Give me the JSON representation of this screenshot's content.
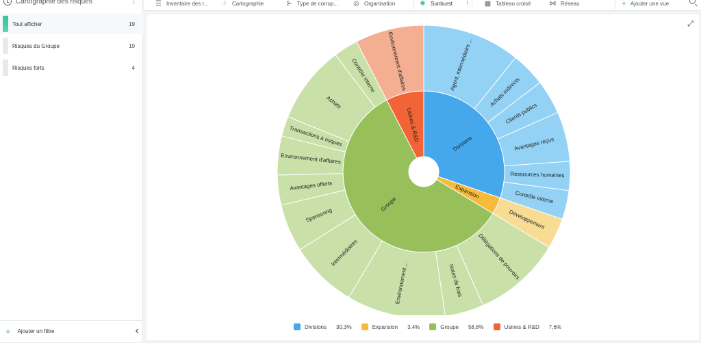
{
  "sidebar": {
    "title": "Cartographie des risques",
    "items": [
      {
        "label": "Tout afficher",
        "count": "19"
      },
      {
        "label": "Risques du Groupe",
        "count": "10"
      },
      {
        "label": "Risques forts",
        "count": "4"
      }
    ],
    "footer_label": "Ajouter un filtre"
  },
  "tabs": [
    {
      "label": "Inventaire des r...",
      "icon": "menu-icon"
    },
    {
      "label": "Cartographie",
      "icon": "scatter-icon"
    },
    {
      "label": "Type de corrup...",
      "icon": "hierarchy-icon"
    },
    {
      "label": "Organisation",
      "icon": "org-icon"
    },
    {
      "label": "Sunburst",
      "icon": "sunburst-icon",
      "active": true
    },
    {
      "label": "Tableau croisé",
      "icon": "table-icon"
    },
    {
      "label": "Réseau",
      "icon": "network-icon"
    }
  ],
  "add_view_label": "Ajouter une vue",
  "chart_data": {
    "type": "sunburst",
    "inner": [
      {
        "name": "Divisions",
        "label": "Divisions",
        "value": 30.3,
        "color": "#45a8ec",
        "light": "#93d1f5"
      },
      {
        "name": "Expansion",
        "label": "Expansion",
        "value": 3.4,
        "color": "#f6bb3a",
        "light": "#f8dc93"
      },
      {
        "name": "Groupe",
        "label": "Groupe",
        "value": 58.8,
        "color": "#97c05a",
        "light": "#c9e0a9"
      },
      {
        "name": "Usines & R&D",
        "label": "Usines & R&D",
        "value": 7.6,
        "color": "#f26335",
        "light": "#f4ae91"
      }
    ],
    "outer": [
      {
        "parent": "Divisions",
        "label": "Agent, intermédiaire ...",
        "value": 10.8
      },
      {
        "parent": "Divisions",
        "label": "Achats indirects",
        "value": 3.8
      },
      {
        "parent": "Divisions",
        "label": "Clients publics",
        "value": 3.8
      },
      {
        "parent": "Divisions",
        "label": "Avantages reçus",
        "value": 5.5
      },
      {
        "parent": "Divisions",
        "label": "Ressources humaines",
        "value": 3.2
      },
      {
        "parent": "Divisions",
        "label": "Contrôle interne",
        "value": 3.2
      },
      {
        "parent": "Expansion",
        "label": "Développement",
        "value": 3.4
      },
      {
        "parent": "Groupe",
        "label": "Délégations de pouvoirs",
        "value": 9.7
      },
      {
        "parent": "Groupe",
        "label": "Notes de frais",
        "value": 4.3
      },
      {
        "parent": "Groupe",
        "label": "Environnement ...",
        "value": 10.9
      },
      {
        "parent": "Groupe",
        "label": "Intermédiaires",
        "value": 7.5
      },
      {
        "parent": "Groupe",
        "label": "Sponsoring",
        "value": 5.3
      },
      {
        "parent": "Groupe",
        "label": "Avantages offerts",
        "value": 3.3
      },
      {
        "parent": "Groupe",
        "label": "Environnement d'affaires",
        "value": 4.3
      },
      {
        "parent": "Groupe",
        "label": "Transactions à risques",
        "value": 2.2
      },
      {
        "parent": "Groupe",
        "label": "Achats",
        "value": 8.6
      },
      {
        "parent": "Groupe",
        "label": "Contrôle interne",
        "value": 2.7
      },
      {
        "parent": "Usines & R&D",
        "label": "Environnement d'affaires",
        "value": 7.6
      }
    ],
    "legend": [
      {
        "name": "Divisions",
        "pct": "30,3%",
        "color": "#45a8ec"
      },
      {
        "name": "Expansion",
        "pct": "3,4%",
        "color": "#f6bb3a"
      },
      {
        "name": "Groupe",
        "pct": "58,8%",
        "color": "#97c05a"
      },
      {
        "name": "Usines & R&D",
        "pct": "7,6%",
        "color": "#f26335"
      }
    ]
  }
}
